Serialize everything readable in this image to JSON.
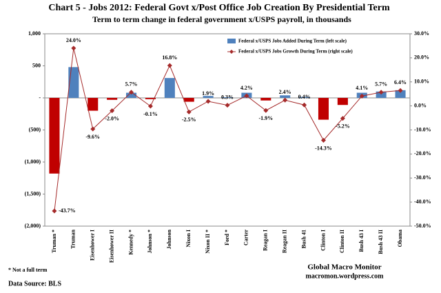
{
  "chart_data": {
    "type": "bar",
    "title": "Chart 5 - Jobs 2012:  Federal Govt x/Post Office Job Creation By Presidential Term",
    "subtitle": "Term to term change in federal government x/USPS payroll,  in thousands",
    "categories": [
      "Truman *",
      "Truman",
      "Eisenhower I",
      "Eisenhower II",
      "Kennedy *",
      "Johnson *",
      "Johnson",
      "Nixon I",
      "Nixon II *",
      "Ford *",
      "Carter",
      "Reagan I",
      "Reagan II",
      "Bush 41",
      "Clinton I",
      "Clinton II",
      "Bush 43 I",
      "Bush 43 II",
      "Obama"
    ],
    "series": [
      {
        "name": "Federal x/USPS Jobs Added During Term  (left scale)",
        "type": "bar",
        "color": "#4f81bd",
        "negative_color": "#c00000",
        "values": [
          -1180,
          480,
          -200,
          -30,
          80,
          -20,
          310,
          -60,
          30,
          10,
          80,
          -40,
          40,
          15,
          -340,
          -110,
          80,
          100,
          120
        ]
      },
      {
        "name": "Federal x/USPS Jobs Growth During Term (right scale)",
        "type": "line",
        "axis": "y2",
        "color": "#a52a2a",
        "values": [
          -43.7,
          24.0,
          -9.6,
          -2.0,
          5.7,
          -0.1,
          16.8,
          -2.5,
          1.9,
          0.3,
          4.2,
          -1.9,
          2.4,
          0.4,
          -14.3,
          -5.2,
          4.1,
          5.7,
          6.4
        ],
        "value_labels": [
          "-43.7%",
          "24.0%",
          "-9.6%",
          "-2.0%",
          "5.7%",
          "-0.1%",
          "16.8%",
          "-2.5%",
          "1.9%",
          "0.3%",
          "4.2%",
          "-1.9%",
          "2.4%",
          "0.4%",
          "-14.3%",
          "-5.2%",
          "4.1%",
          "5.7%",
          "6.4%"
        ]
      }
    ],
    "ylim": [
      -2000,
      1000
    ],
    "yticks": [
      {
        "value": 1000,
        "label": "1,000"
      },
      500,
      {
        "value": 0,
        "label": "-"
      },
      {
        "value": -500,
        "label": "(500)"
      },
      {
        "value": -1000,
        "label": "(1,000)"
      },
      {
        "value": -1500,
        "label": "(1,500)"
      },
      {
        "value": -2000,
        "label": "(2,000)"
      }
    ],
    "y2lim": [
      -50,
      30
    ],
    "y2ticks": [
      {
        "value": 30,
        "label": "30.0%"
      },
      {
        "value": 20,
        "label": "20.0%"
      },
      {
        "value": 10,
        "label": "10.0%"
      },
      {
        "value": 0,
        "label": "0.0%"
      },
      {
        "value": -10,
        "label": "-10.0%"
      },
      {
        "value": -20,
        "label": "-20.0%"
      },
      {
        "value": -30,
        "label": "-30.0%"
      },
      {
        "value": -40,
        "label": "-40.0%"
      },
      {
        "value": -50,
        "label": "-50.0%"
      }
    ],
    "grid": false,
    "legend": "top-right",
    "footnote": "* Not a full term",
    "source": "Data Source:  BLS",
    "credit": [
      "Global Macro Monitor",
      "macromon.wordpress.com"
    ]
  }
}
